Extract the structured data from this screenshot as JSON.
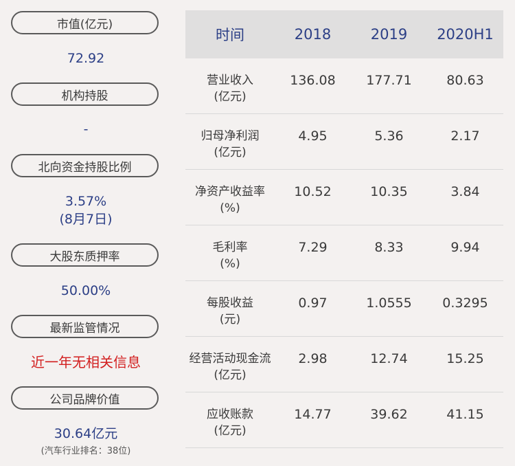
{
  "left_panel": {
    "market_cap_label": "市值(亿元)",
    "market_cap_value": "72.92",
    "institution_label": "机构持股",
    "institution_value": "-",
    "northbound_label": "北向资金持股比例",
    "northbound_value": "3.57%",
    "northbound_date": "(8月7日)",
    "pledge_label": "大股东质押率",
    "pledge_value": "50.00%",
    "regulation_label": "最新监管情况",
    "regulation_value": "近一年无相关信息",
    "brand_label": "公司品牌价值",
    "brand_value": "30.64亿元",
    "brand_rank": "(汽车行业排名：38位)"
  },
  "table": {
    "headers": [
      "时间",
      "2018",
      "2019",
      "2020H1"
    ],
    "rows": [
      {
        "label": "营业收入",
        "unit": "(亿元)",
        "values": [
          "136.08",
          "177.71",
          "80.63"
        ]
      },
      {
        "label": "归母净利润",
        "unit": "(亿元)",
        "values": [
          "4.95",
          "5.36",
          "2.17"
        ]
      },
      {
        "label": "净资产收益率",
        "unit": "(%)",
        "values": [
          "10.52",
          "10.35",
          "3.84"
        ]
      },
      {
        "label": "毛利率",
        "unit": "(%)",
        "values": [
          "7.29",
          "8.33",
          "9.94"
        ]
      },
      {
        "label": "每股收益",
        "unit": "(元)",
        "values": [
          "0.97",
          "1.0555",
          "0.3295"
        ]
      },
      {
        "label": "经营活动现金流",
        "unit": "(亿元)",
        "values": [
          "2.98",
          "12.74",
          "15.25"
        ]
      },
      {
        "label": "应收账款",
        "unit": "(亿元)",
        "values": [
          "14.77",
          "39.62",
          "41.15"
        ]
      }
    ]
  },
  "colors": {
    "background": "#f4f1f0",
    "header_bg": "#e0dfdf",
    "accent_blue": "#2c3f86",
    "alert_red": "#d21f1f"
  }
}
